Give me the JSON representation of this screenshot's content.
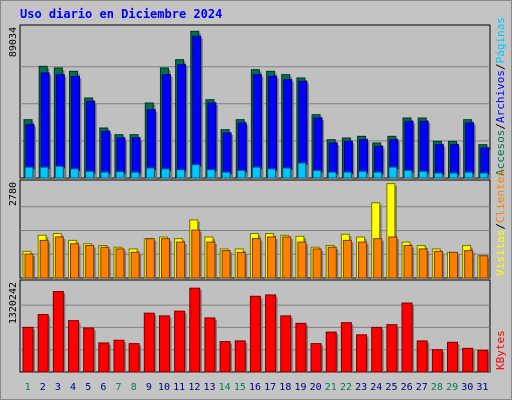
{
  "chart_data": [
    {
      "type": "bar",
      "title": "Uso diario en Diciembre 2024",
      "categories": [
        "1",
        "2",
        "3",
        "4",
        "5",
        "6",
        "7",
        "8",
        "9",
        "10",
        "11",
        "12",
        "13",
        "14",
        "15",
        "16",
        "17",
        "18",
        "19",
        "20",
        "21",
        "22",
        "23",
        "24",
        "25",
        "26",
        "27",
        "28",
        "29",
        "30",
        "31"
      ],
      "weekend_days": [
        "1",
        "7",
        "8",
        "14",
        "15",
        "21",
        "22",
        "28",
        "29"
      ],
      "ymax_label": "89034",
      "ylim": [
        0,
        89034
      ],
      "grid": true,
      "series": [
        {
          "name": "Accesos",
          "color": "#007050",
          "values": [
            35000,
            67000,
            66000,
            64000,
            48000,
            30000,
            26000,
            26000,
            45000,
            66000,
            71000,
            88000,
            47000,
            29000,
            35000,
            65000,
            64000,
            62000,
            60000,
            38000,
            23000,
            24000,
            25000,
            21000,
            25000,
            36000,
            36000,
            22000,
            22000,
            35000,
            20000
          ]
        },
        {
          "name": "Archivos",
          "color": "#0000ff",
          "values": [
            32000,
            63000,
            62000,
            61000,
            46000,
            28000,
            24000,
            24000,
            41000,
            62000,
            68000,
            85000,
            45000,
            27000,
            33000,
            62000,
            61000,
            59000,
            58000,
            36000,
            21000,
            22000,
            23000,
            19000,
            23000,
            34000,
            34000,
            20000,
            20000,
            33000,
            18000
          ]
        },
        {
          "name": "Páginas",
          "color": "#00c8ff",
          "values": [
            6500,
            6500,
            7000,
            5500,
            4000,
            3500,
            3800,
            3500,
            6000,
            5500,
            5000,
            8000,
            5000,
            3500,
            4500,
            6500,
            5500,
            6000,
            9000,
            4500,
            3500,
            3500,
            4000,
            3500,
            6500,
            4500,
            4000,
            3000,
            3000,
            3500,
            3000
          ]
        }
      ]
    },
    {
      "type": "bar",
      "ymax_label": "2780",
      "ylim": [
        0,
        2780
      ],
      "grid": true,
      "series": [
        {
          "name": "Visitas",
          "color": "#ffff00",
          "values": [
            780,
            1250,
            1300,
            1100,
            1000,
            950,
            900,
            850,
            1150,
            1200,
            1150,
            1700,
            1200,
            850,
            850,
            1300,
            1300,
            1250,
            1220,
            900,
            950,
            1280,
            1200,
            2200,
            2760,
            1050,
            950,
            850,
            750,
            950,
            650
          ]
        },
        {
          "name": "Clientes",
          "color": "#ff8000",
          "values": [
            700,
            1100,
            1200,
            1000,
            950,
            900,
            850,
            750,
            1150,
            1150,
            1050,
            1400,
            1050,
            800,
            750,
            1150,
            1200,
            1200,
            1050,
            850,
            900,
            1100,
            1050,
            1150,
            1200,
            950,
            850,
            780,
            750,
            800,
            650
          ]
        }
      ]
    },
    {
      "type": "bar",
      "ymax_label": "1320242",
      "ylim": [
        0,
        1320242
      ],
      "grid": true,
      "series": [
        {
          "name": "KBytes",
          "color": "#ff0000",
          "values": [
            660000,
            850000,
            1190000,
            760000,
            650000,
            430000,
            470000,
            420000,
            870000,
            830000,
            900000,
            1240000,
            800000,
            450000,
            460000,
            1120000,
            1140000,
            830000,
            720000,
            420000,
            590000,
            730000,
            550000,
            660000,
            700000,
            1020000,
            460000,
            330000,
            440000,
            350000,
            320000
          ]
        }
      ]
    }
  ],
  "legend_top": [
    {
      "label": "Accesos",
      "color": "#007050"
    },
    {
      "label": "/",
      "color": "#000000"
    },
    {
      "label": "Archivos",
      "color": "#0000ff"
    },
    {
      "label": "/",
      "color": "#000000"
    },
    {
      "label": "Páginas",
      "color": "#00c8ff"
    }
  ],
  "legend_mid": [
    {
      "label": "Visitas",
      "color": "#ffff00"
    },
    {
      "label": "/",
      "color": "#000000"
    },
    {
      "label": "Clientes",
      "color": "#ff8000"
    }
  ],
  "legend_bottom": [
    {
      "label": "KBytes",
      "color": "#ff0000"
    }
  ]
}
